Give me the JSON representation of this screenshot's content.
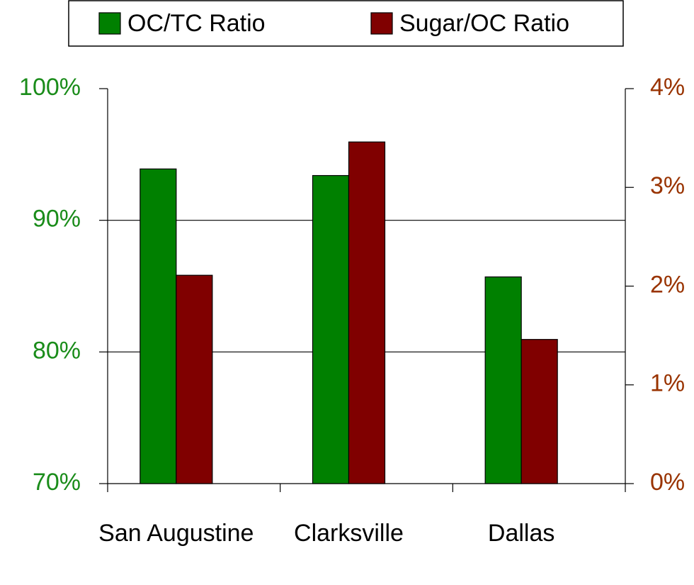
{
  "chart_data": {
    "type": "bar",
    "categories": [
      "San Augustine",
      "Clarksville",
      "Dallas"
    ],
    "series": [
      {
        "name": "OC/TC Ratio",
        "color": "#008000",
        "values": [
          93.9,
          93.4,
          85.7
        ]
      },
      {
        "name": "Sugar/OC Ratio",
        "color": "#800000",
        "values": [
          2.11,
          3.46,
          1.46
        ],
        "axis": "y2"
      }
    ],
    "ylim": [
      70,
      100
    ],
    "yticks": [
      {
        "value": 70,
        "label": "70%"
      },
      {
        "value": 80,
        "label": "80%"
      },
      {
        "value": 90,
        "label": "90%"
      },
      {
        "value": 100,
        "label": "100%"
      }
    ],
    "y2lim": [
      0,
      4
    ],
    "y2ticks": [
      {
        "value": 0,
        "label": "0%"
      },
      {
        "value": 1,
        "label": "1%"
      },
      {
        "value": 2,
        "label": "2%"
      },
      {
        "value": 3,
        "label": "3%"
      },
      {
        "value": 4,
        "label": "4%"
      }
    ],
    "ytick_color": "#1a8c1a",
    "y2tick_color": "#993300",
    "grid": true,
    "legend": "top"
  }
}
